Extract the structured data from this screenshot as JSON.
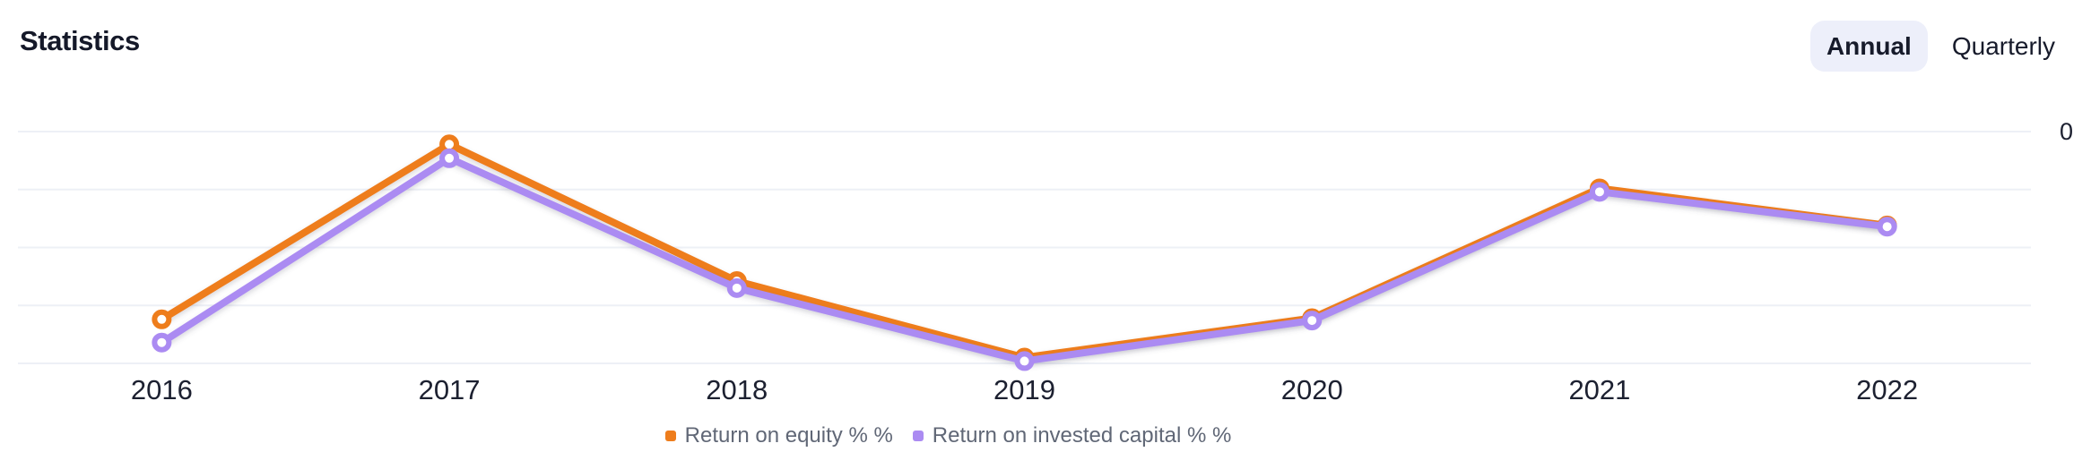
{
  "header": {
    "title": "Statistics",
    "period_toggle": {
      "options": [
        "Annual",
        "Quarterly"
      ],
      "selected": "Annual"
    }
  },
  "chart_data": {
    "type": "line",
    "title": "",
    "xlabel": "",
    "ylabel": "",
    "categories": [
      "2016",
      "2017",
      "2018",
      "2019",
      "2020",
      "2021",
      "2022"
    ],
    "series": [
      {
        "name": "Return on equity % %",
        "color": "#ee7d1c",
        "values": [
          -16.2,
          -1.1,
          -12.9,
          -19.5,
          -16.1,
          -4.9,
          -8.1
        ]
      },
      {
        "name": "Return on invested capital % %",
        "color": "#ab8bf2",
        "values": [
          -18.2,
          -2.3,
          -13.5,
          -19.8,
          -16.3,
          -5.2,
          -8.2
        ]
      }
    ],
    "ylim": [
      -20,
      0
    ],
    "y_gridline_step": 5,
    "y_tick_labels_visible": [
      "0"
    ],
    "grid": true,
    "legend_position": "bottom",
    "marker_style": "circle-hollow"
  },
  "colors": {
    "grid": "#edf0f6",
    "axis_text": "#1c2030",
    "legend_text": "#606776",
    "selected_pill_bg": "#edeffa",
    "background": "#ffffff"
  }
}
